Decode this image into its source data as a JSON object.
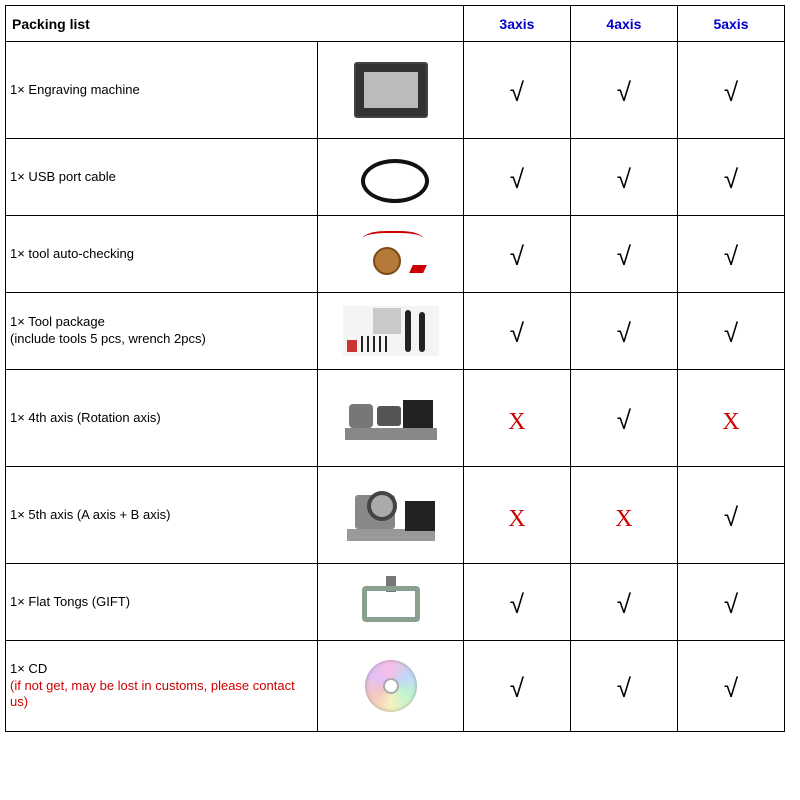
{
  "header": {
    "title": "Packing list",
    "columns": [
      "3axis",
      "4axis",
      "5axis"
    ],
    "header_color": "#0000cc"
  },
  "marks": {
    "yes": "√",
    "no": "X",
    "no_color": "#d00000"
  },
  "items": [
    {
      "label": "1× Engraving machine",
      "note": "",
      "icon": "engraving-machine-icon",
      "cells": [
        "yes",
        "yes",
        "yes"
      ]
    },
    {
      "label": "1× USB port cable",
      "note": "",
      "icon": "usb-cable-icon",
      "cells": [
        "yes",
        "yes",
        "yes"
      ]
    },
    {
      "label": "1× tool auto-checking",
      "note": "",
      "icon": "tool-autocheck-icon",
      "cells": [
        "yes",
        "yes",
        "yes"
      ]
    },
    {
      "label": "1× Tool package",
      "note_plain": "(include tools 5 pcs, wrench 2pcs)",
      "note": "",
      "icon": "tool-package-icon",
      "cells": [
        "yes",
        "yes",
        "yes"
      ]
    },
    {
      "label": "1× 4th axis (Rotation axis)",
      "note": "",
      "icon": "fourth-axis-icon",
      "cells": [
        "no",
        "yes",
        "no"
      ]
    },
    {
      "label": "1× 5th axis (A axis + B axis)",
      "note": "",
      "icon": "fifth-axis-icon",
      "cells": [
        "no",
        "no",
        "yes"
      ]
    },
    {
      "label": "1× Flat Tongs (GIFT)",
      "note": "",
      "icon": "flat-tongs-icon",
      "cells": [
        "yes",
        "yes",
        "yes"
      ]
    },
    {
      "label": "1× CD",
      "note": "(if not get, may be lost in customs, please contact us)",
      "icon": "cd-icon",
      "cells": [
        "yes",
        "yes",
        "yes"
      ]
    }
  ]
}
